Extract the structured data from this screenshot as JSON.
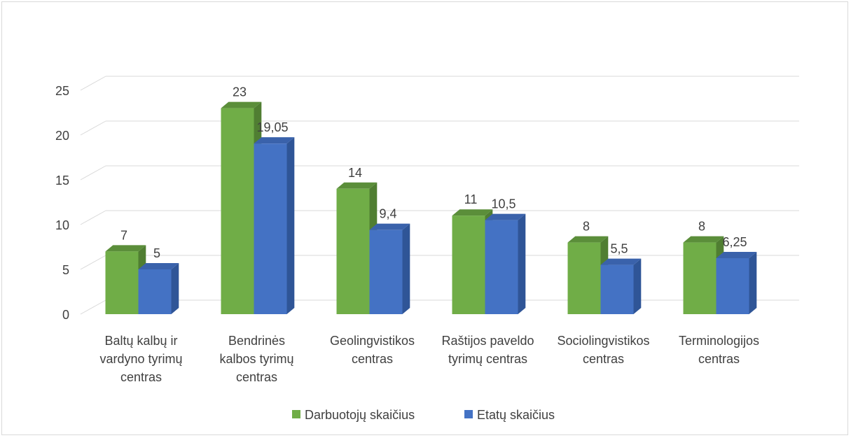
{
  "chart_data": {
    "type": "bar",
    "style": "3d-clustered-column",
    "categories": [
      [
        "Baltų kalbų ir",
        "vardyno tyrimų",
        "centras"
      ],
      [
        "Bendrinės",
        "kalbos tyrimų",
        "centras"
      ],
      [
        "Geolingvistikos",
        "centras"
      ],
      [
        "Raštijos paveldo",
        "tyrimų centras"
      ],
      [
        "Sociolingvistikos",
        "centras"
      ],
      [
        "Terminologijos",
        "centras"
      ]
    ],
    "series": [
      {
        "name": "Darbuotojų skaičius",
        "values": [
          7,
          23,
          14,
          11,
          8,
          8
        ],
        "labels": [
          "7",
          "23",
          "14",
          "11",
          "8",
          "8"
        ],
        "color": "#70ad47",
        "side_color": "#507e32",
        "top_color": "#5b8e3a"
      },
      {
        "name": "Etatų skaičius",
        "values": [
          5,
          19.05,
          9.4,
          10.5,
          5.5,
          6.25
        ],
        "labels": [
          "5",
          "19,05",
          "9,4",
          "10,5",
          "5,5",
          "6,25"
        ],
        "color": "#4472c4",
        "side_color": "#2f5597",
        "top_color": "#3a62ab"
      }
    ],
    "ylim": [
      0,
      25
    ],
    "yticks": [
      "0",
      "5",
      "10",
      "15",
      "20",
      "25"
    ],
    "grid": true,
    "legend_position": "bottom"
  }
}
